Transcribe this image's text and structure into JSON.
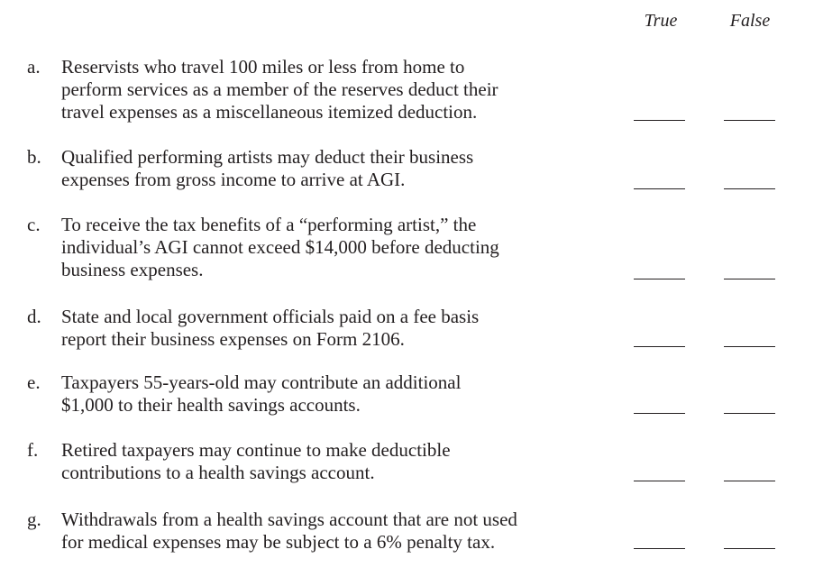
{
  "headers": {
    "true_label": "True",
    "false_label": "False"
  },
  "items": [
    {
      "letter": "a.",
      "text": "Reservists who travel 100 miles or less from home to\nperform services as a member of the reserves deduct their\ntravel expenses as a miscellaneous itemized deduction."
    },
    {
      "letter": "b.",
      "text": "Qualified performing artists may deduct their business\nexpenses from gross income to arrive at AGI."
    },
    {
      "letter": "c.",
      "text": "To receive the tax benefits of a “performing artist,” the\nindividual’s AGI cannot exceed $14,000 before deducting\nbusiness expenses."
    },
    {
      "letter": "d.",
      "text": "State and local government officials paid on a fee basis\nreport their business expenses on Form 2106."
    },
    {
      "letter": "e.",
      "text": "Taxpayers 55-years-old may contribute an additional\n$1,000 to their health savings accounts."
    },
    {
      "letter": "f.",
      "text": "Retired taxpayers may continue to make deductible\ncontributions to a health savings account."
    },
    {
      "letter": "g.",
      "text": "Withdrawals from a health savings account that are not used\nfor medical expenses may be subject to a 6% penalty tax."
    }
  ]
}
